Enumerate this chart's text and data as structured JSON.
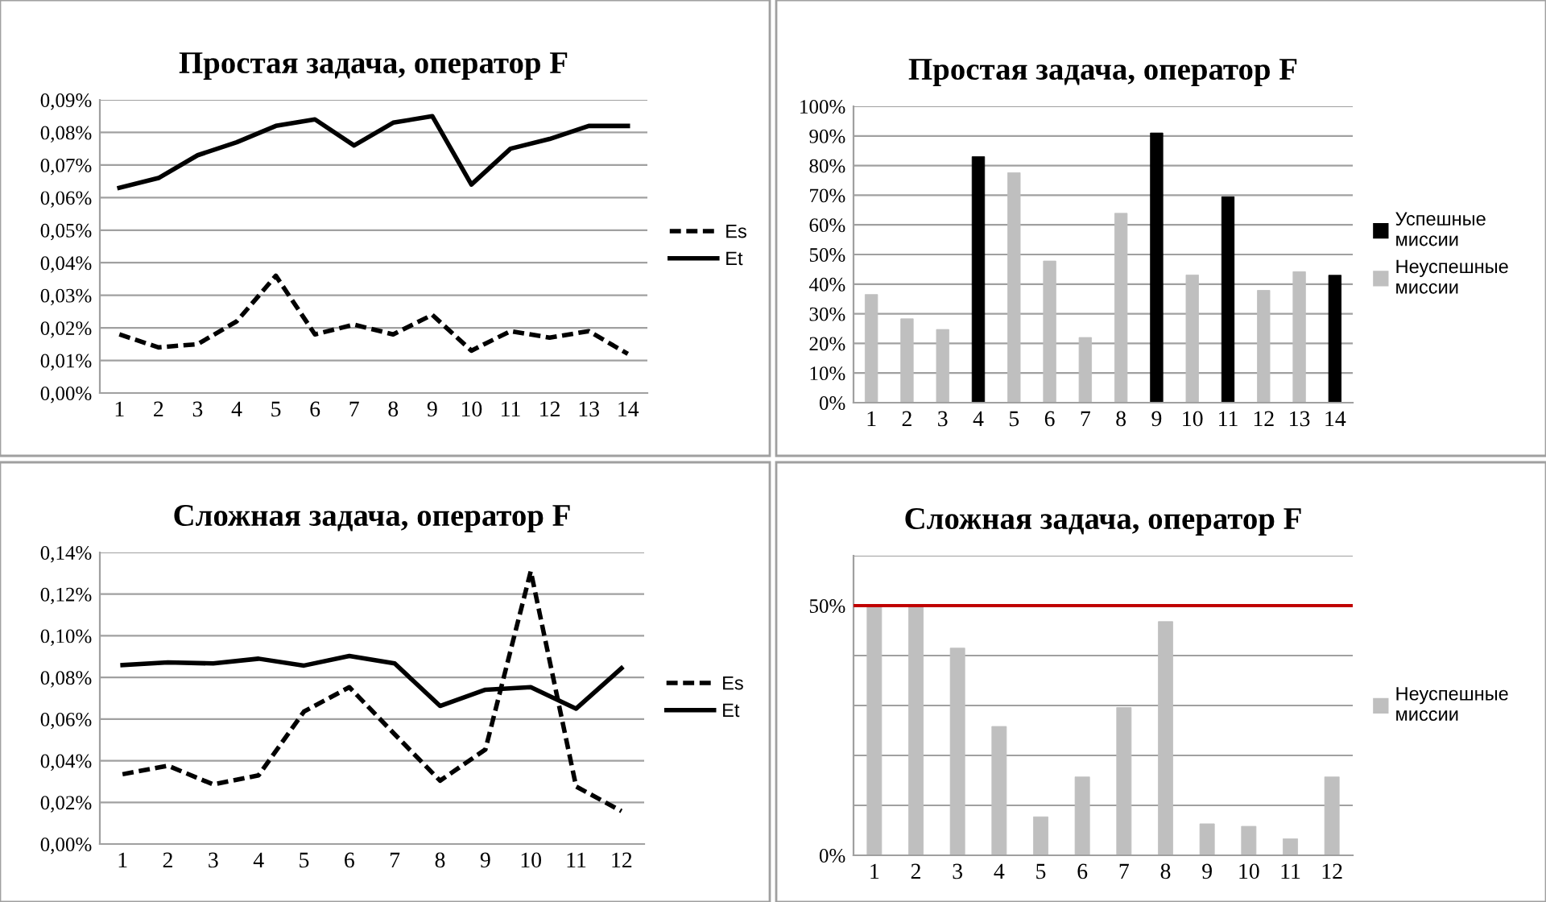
{
  "chart_data": [
    {
      "type": "line",
      "title": "Простая задача, оператор F",
      "categories": [
        "1",
        "2",
        "3",
        "4",
        "5",
        "6",
        "7",
        "8",
        "9",
        "10",
        "11",
        "12",
        "13",
        "14"
      ],
      "series": [
        {
          "name": "Es",
          "color": "#000000",
          "line_style": "dashed",
          "values": [
            0.018,
            0.014,
            0.015,
            0.022,
            0.036,
            0.018,
            0.021,
            0.018,
            0.024,
            0.013,
            0.019,
            0.017,
            0.019,
            0.012
          ]
        },
        {
          "name": "Et",
          "color": "#000000",
          "line_style": "solid",
          "values": [
            0.063,
            0.066,
            0.073,
            0.077,
            0.082,
            0.084,
            0.076,
            0.083,
            0.085,
            0.064,
            0.075,
            0.078,
            0.082,
            0.082
          ]
        }
      ],
      "ylim": [
        0,
        0.09
      ],
      "yticks": [
        {
          "value": 0,
          "label": "0,00%"
        },
        {
          "value": 0.01,
          "label": "0,01%"
        },
        {
          "value": 0.02,
          "label": "0,02%"
        },
        {
          "value": 0.03,
          "label": "0,03%"
        },
        {
          "value": 0.04,
          "label": "0,04%"
        },
        {
          "value": 0.05,
          "label": "0,05%"
        },
        {
          "value": 0.06,
          "label": "0,06%"
        },
        {
          "value": 0.07,
          "label": "0,07%"
        },
        {
          "value": 0.08,
          "label": "0,08%"
        },
        {
          "value": 0.09,
          "label": "0,09%"
        }
      ],
      "grid": "y",
      "legend": "right",
      "marker": "none"
    },
    {
      "type": "bar",
      "title": "Простая задача, оператор F",
      "categories": [
        "1",
        "2",
        "3",
        "4",
        "5",
        "6",
        "7",
        "8",
        "9",
        "10",
        "11",
        "12",
        "13",
        "14"
      ],
      "series": [
        {
          "name": "Успешные миссии",
          "color": "#000000",
          "values": [
            null,
            null,
            null,
            83,
            null,
            null,
            null,
            null,
            91,
            null,
            69.5,
            null,
            null,
            43
          ]
        },
        {
          "name": "Неуспешные миссии",
          "color": "#bfbfbf",
          "values": [
            36.5,
            28.3,
            24.7,
            null,
            77.6,
            47.8,
            22,
            63.9,
            null,
            43.1,
            null,
            37.9,
            44.2,
            null
          ]
        }
      ],
      "ylim": [
        0,
        100
      ],
      "yticks": [
        {
          "value": 0,
          "label": "0%"
        },
        {
          "value": 10,
          "label": "10%"
        },
        {
          "value": 20,
          "label": "20%"
        },
        {
          "value": 30,
          "label": "30%"
        },
        {
          "value": 40,
          "label": "40%"
        },
        {
          "value": 50,
          "label": "50%"
        },
        {
          "value": 60,
          "label": "60%"
        },
        {
          "value": 70,
          "label": "70%"
        },
        {
          "value": 80,
          "label": "80%"
        },
        {
          "value": 90,
          "label": "90%"
        },
        {
          "value": 100,
          "label": "100%"
        }
      ],
      "grid": "y",
      "legend": "right"
    },
    {
      "type": "line",
      "title": "Сложная задача, оператор F",
      "categories": [
        "1",
        "2",
        "3",
        "4",
        "5",
        "6",
        "7",
        "8",
        "9",
        "10",
        "11",
        "12"
      ],
      "series": [
        {
          "name": "Es",
          "color": "#000000",
          "line_style": "dashed",
          "values": [
            0.0335,
            0.0376,
            0.0286,
            0.033,
            0.0636,
            0.0753,
            0.0527,
            0.0304,
            0.0454,
            0.131,
            0.0276,
            0.0158
          ]
        },
        {
          "name": "Et",
          "color": "#000000",
          "line_style": "solid",
          "values": [
            0.0859,
            0.0872,
            0.0867,
            0.089,
            0.0857,
            0.0903,
            0.0867,
            0.0663,
            0.0741,
            0.0753,
            0.065,
            0.0844
          ]
        }
      ],
      "ylim": [
        0,
        0.14
      ],
      "yticks": [
        {
          "value": 0,
          "label": "0,00%"
        },
        {
          "value": 0.02,
          "label": "0,02%"
        },
        {
          "value": 0.04,
          "label": "0,04%"
        },
        {
          "value": 0.06,
          "label": "0,06%"
        },
        {
          "value": 0.08,
          "label": "0,08%"
        },
        {
          "value": 0.1,
          "label": "0,10%"
        },
        {
          "value": 0.12,
          "label": "0,12%"
        },
        {
          "value": 0.14,
          "label": "0,14%"
        }
      ],
      "grid": "y",
      "legend": "right",
      "marker": "none"
    },
    {
      "type": "bar",
      "title": "Сложная задача, оператор F",
      "categories": [
        "1",
        "2",
        "3",
        "4",
        "5",
        "6",
        "7",
        "8",
        "9",
        "10",
        "11",
        "12"
      ],
      "series": [
        {
          "name": "Неуспешные миссии",
          "color": "#bfbfbf",
          "values": [
            50,
            50,
            41.5,
            25.8,
            7.7,
            15.7,
            29.6,
            46.8,
            6.3,
            5.8,
            3.3,
            15.7
          ]
        }
      ],
      "ylim": [
        0,
        60
      ],
      "yticks": [
        {
          "value": 0,
          "label": "0%"
        },
        {
          "value": 10,
          "label": null
        },
        {
          "value": 20,
          "label": null
        },
        {
          "value": 30,
          "label": null
        },
        {
          "value": 40,
          "label": null
        },
        {
          "value": 50,
          "label": "50%"
        },
        {
          "value": 60,
          "label": null
        }
      ],
      "ref_lines": [
        {
          "axis": "y",
          "value": 50,
          "color": "#c00000"
        }
      ],
      "grid": "y",
      "legend": "right"
    }
  ]
}
